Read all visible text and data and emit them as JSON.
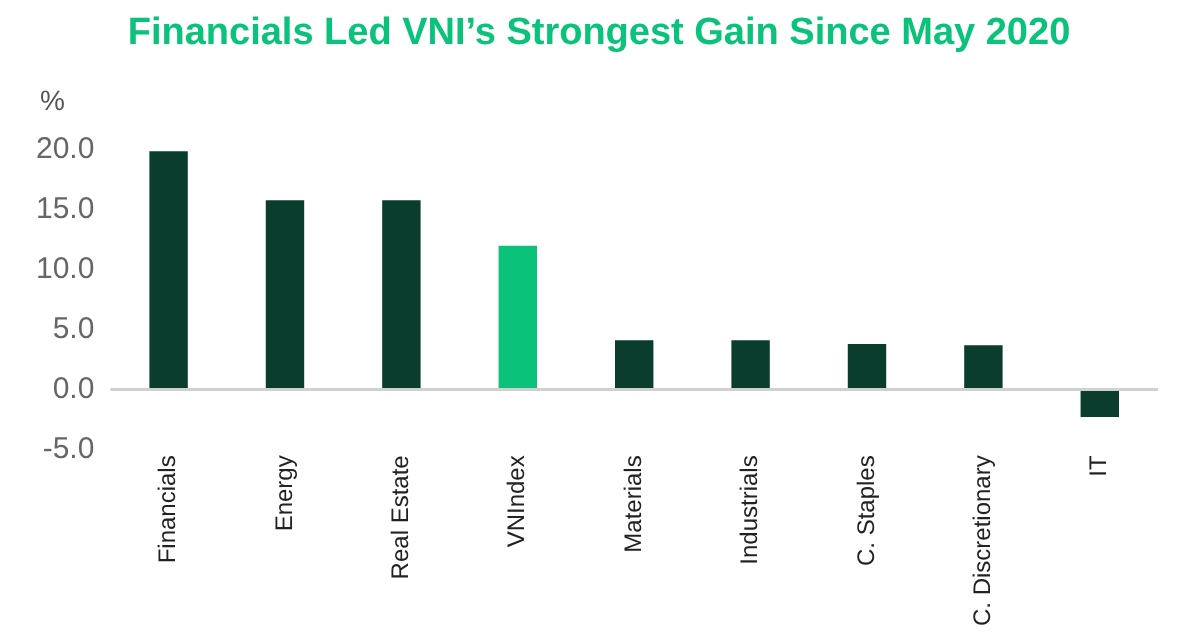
{
  "chart_data": {
    "type": "bar",
    "title": "Financials Led VNI’s Strongest Gain Since May 2020",
    "ylabel": "%",
    "categories": [
      "Financials",
      "Energy",
      "Real Estate",
      "VNIndex",
      "Materials",
      "Industrials",
      "C. Staples",
      "C. Discretionary",
      "IT"
    ],
    "values": [
      19.9,
      15.8,
      15.8,
      12.0,
      4.1,
      4.1,
      3.8,
      3.7,
      -2.3
    ],
    "colors": [
      "#0b3d2e",
      "#0b3d2e",
      "#0b3d2e",
      "#0bc27a",
      "#0b3d2e",
      "#0b3d2e",
      "#0b3d2e",
      "#0b3d2e",
      "#0b3d2e"
    ],
    "ylim": [
      -5,
      20
    ],
    "yticks": [
      {
        "value": -5,
        "label": "-5.0"
      },
      {
        "value": 0,
        "label": "0.0"
      },
      {
        "value": 5,
        "label": "5.0"
      },
      {
        "value": 10,
        "label": "10.0"
      },
      {
        "value": 15,
        "label": "15.0"
      },
      {
        "value": 20,
        "label": "20.0"
      }
    ],
    "ref_lines": [
      {
        "axis": "y",
        "value": 0,
        "color": "#d0d0d0"
      }
    ],
    "legend": false
  }
}
